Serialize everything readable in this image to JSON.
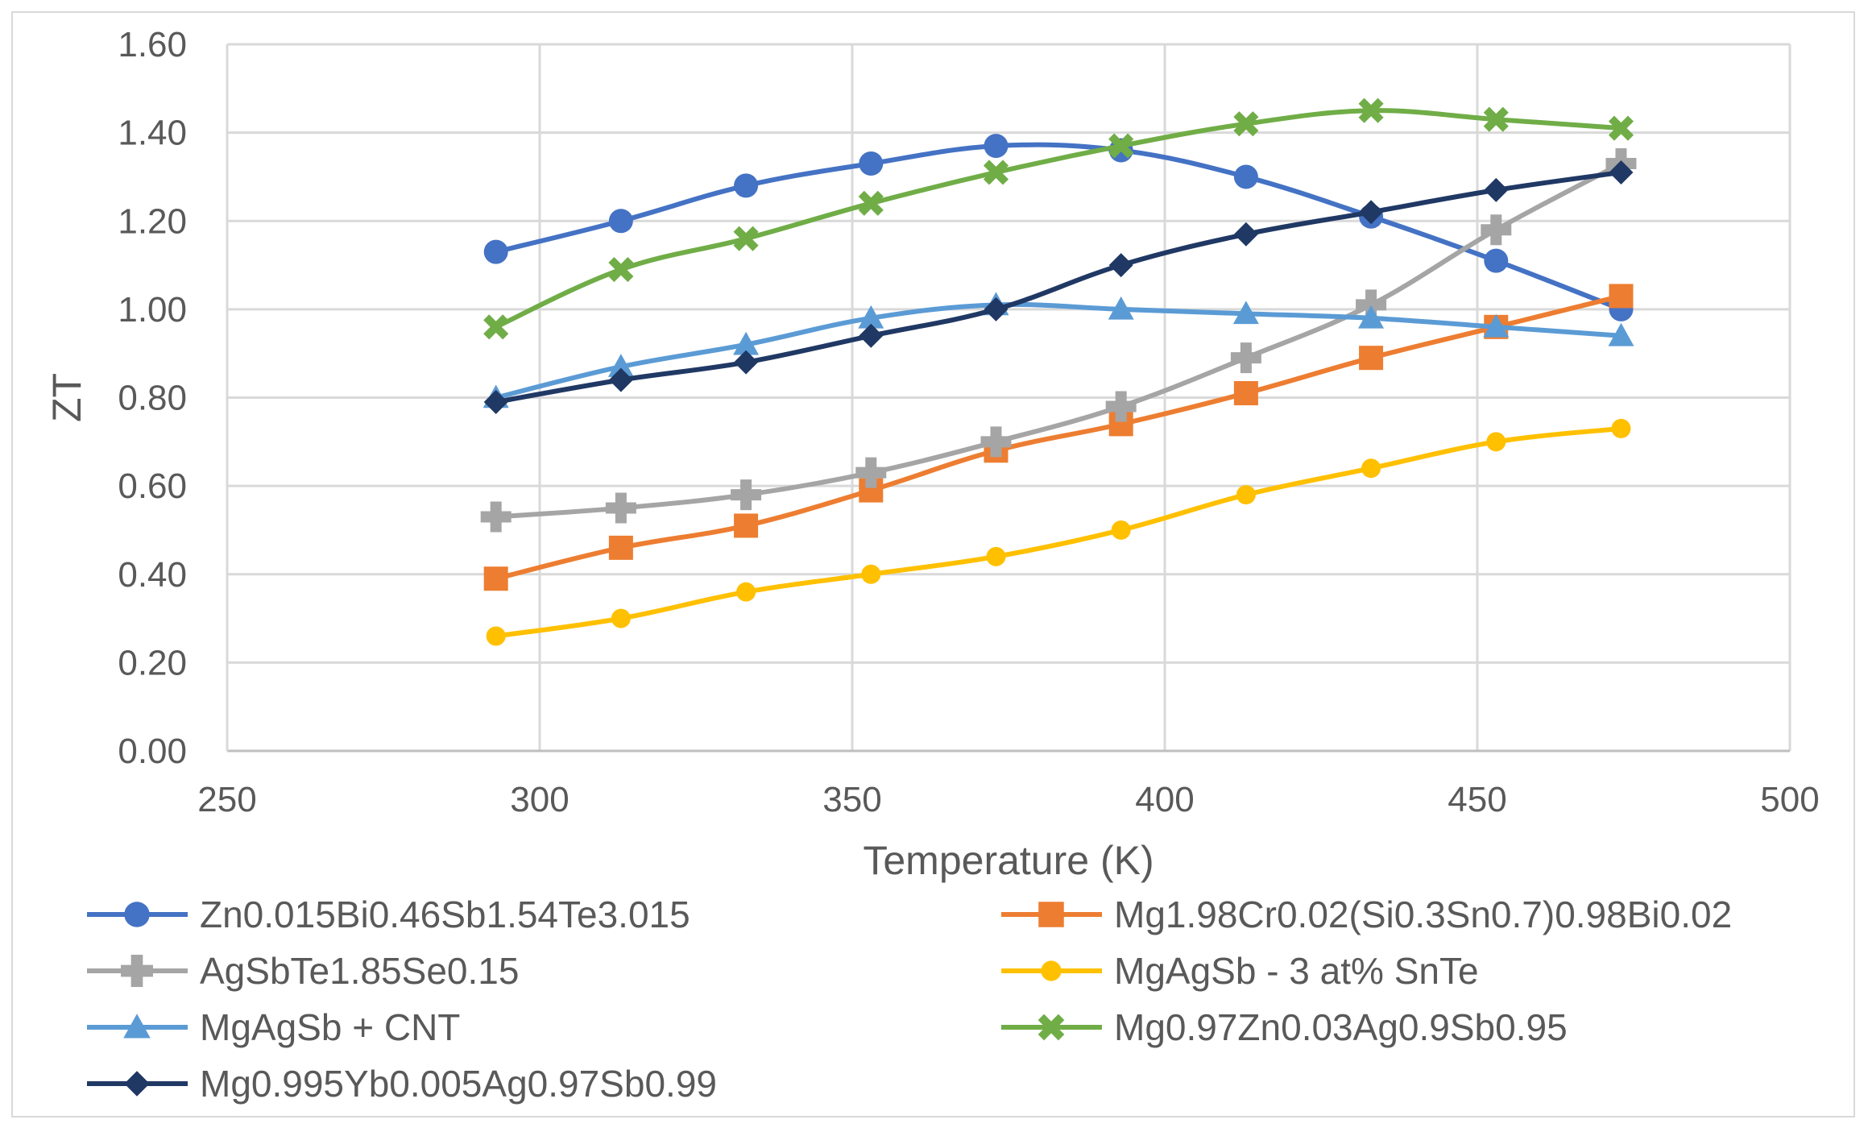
{
  "chart_data": {
    "type": "line",
    "title": "",
    "xlabel": "Temperature (K)",
    "ylabel": "ZT",
    "xlim": [
      250,
      500
    ],
    "ylim": [
      0,
      1.6
    ],
    "x_ticks": [
      "250",
      "300",
      "350",
      "400",
      "450",
      "500"
    ],
    "y_ticks": [
      "0.00",
      "0.20",
      "0.40",
      "0.60",
      "0.80",
      "1.00",
      "1.20",
      "1.40",
      "1.60"
    ],
    "grid": true,
    "legend_position": "bottom",
    "series": [
      {
        "name": "Zn0.015Bi0.46Sb1.54Te3.015",
        "color": "#4472c4",
        "marker": "circle",
        "x": [
          293,
          313,
          333,
          353,
          373,
          393,
          413,
          433,
          453,
          473
        ],
        "y": [
          1.13,
          1.2,
          1.28,
          1.33,
          1.37,
          1.36,
          1.3,
          1.21,
          1.11,
          1.0
        ]
      },
      {
        "name": "Mg1.98Cr0.02(Si0.3Sn0.7)0.98Bi0.02",
        "color": "#ed7d31",
        "marker": "square",
        "x": [
          293,
          313,
          333,
          353,
          373,
          393,
          413,
          433,
          453,
          473
        ],
        "y": [
          0.39,
          0.46,
          0.51,
          0.59,
          0.68,
          0.74,
          0.81,
          0.89,
          0.96,
          1.03
        ]
      },
      {
        "name": "AgSbTe1.85Se0.15",
        "color": "#a5a5a5",
        "marker": "plus",
        "x": [
          293,
          313,
          333,
          353,
          373,
          393,
          413,
          433,
          453,
          473
        ],
        "y": [
          0.53,
          0.55,
          0.58,
          0.63,
          0.7,
          0.78,
          0.89,
          1.01,
          1.18,
          1.33
        ]
      },
      {
        "name": "MgAgSb - 3 at% SnTe",
        "color": "#ffc000",
        "marker": "circle-small",
        "x": [
          293,
          313,
          333,
          353,
          373,
          393,
          413,
          433,
          453,
          473
        ],
        "y": [
          0.26,
          0.3,
          0.36,
          0.4,
          0.44,
          0.5,
          0.58,
          0.64,
          0.7,
          0.73
        ]
      },
      {
        "name": "MgAgSb + CNT",
        "color": "#5b9bd5",
        "marker": "triangle",
        "x": [
          293,
          313,
          333,
          353,
          373,
          393,
          413,
          433,
          453,
          473
        ],
        "y": [
          0.8,
          0.87,
          0.92,
          0.98,
          1.01,
          1.0,
          0.99,
          0.98,
          0.96,
          0.94
        ]
      },
      {
        "name": "Mg0.97Zn0.03Ag0.9Sb0.95",
        "color": "#70ad47",
        "marker": "x",
        "x": [
          293,
          313,
          333,
          353,
          373,
          393,
          413,
          433,
          453,
          473
        ],
        "y": [
          0.96,
          1.09,
          1.16,
          1.24,
          1.31,
          1.37,
          1.42,
          1.45,
          1.43,
          1.41
        ]
      },
      {
        "name": "Mg0.995Yb0.005Ag0.97Sb0.99",
        "color": "#203864",
        "marker": "diamond",
        "x": [
          293,
          313,
          333,
          353,
          373,
          393,
          413,
          433,
          453,
          473
        ],
        "y": [
          0.79,
          0.84,
          0.88,
          0.94,
          1.0,
          1.1,
          1.17,
          1.22,
          1.27,
          1.31
        ]
      }
    ]
  }
}
